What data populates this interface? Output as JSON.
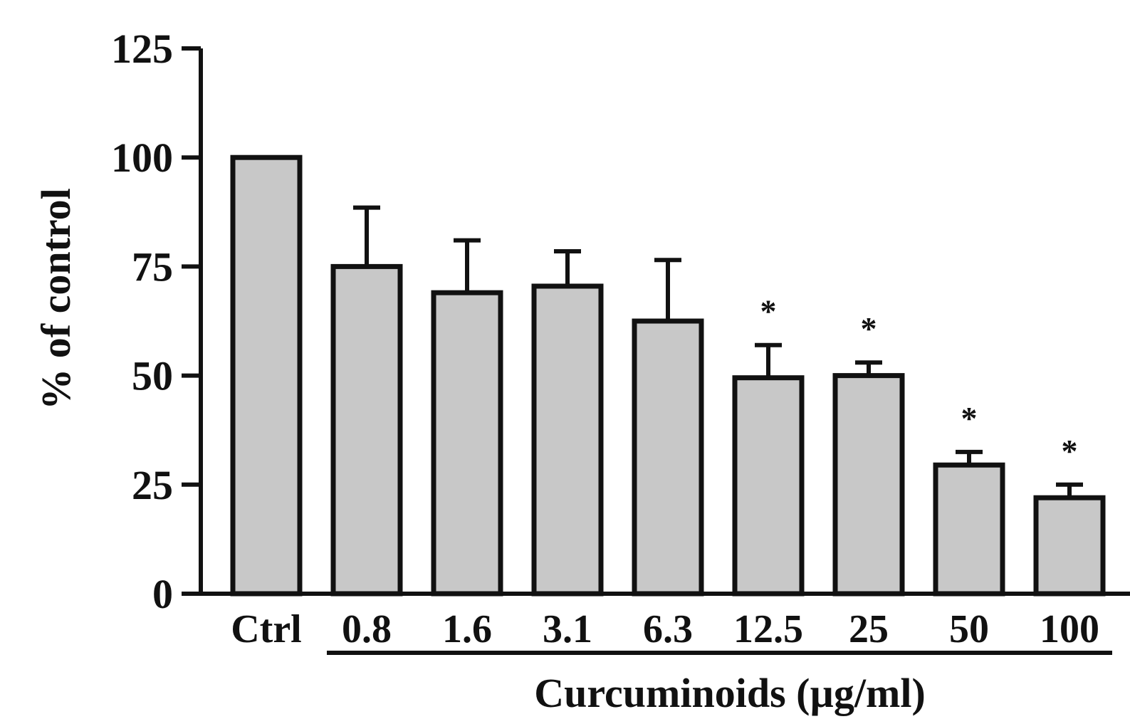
{
  "chart_data": {
    "type": "bar",
    "title": "",
    "ylabel": "% of control",
    "xlabel": "Curcuminoids (µg/ml)",
    "ylim": [
      0,
      125
    ],
    "yticks": [
      "0",
      "25",
      "50",
      "75",
      "100",
      "125"
    ],
    "grid": false,
    "legend": "none",
    "bar_color": "#c8c8c8",
    "edge_color": "#111111",
    "categories": [
      "Ctrl",
      "0.8",
      "1.6",
      "3.1",
      "6.3",
      "12.5",
      "25",
      "50",
      "100"
    ],
    "values": [
      100,
      75,
      69,
      70.5,
      62.5,
      49.5,
      50,
      29.5,
      22
    ],
    "errors": [
      0,
      13.5,
      12,
      8,
      14,
      7.5,
      3,
      3,
      3
    ],
    "significance": [
      "",
      "",
      "",
      "",
      "",
      "*",
      "*",
      "*",
      "*"
    ],
    "grouped_categories": [
      "0.8",
      "1.6",
      "3.1",
      "6.3",
      "12.5",
      "25",
      "50",
      "100"
    ]
  }
}
